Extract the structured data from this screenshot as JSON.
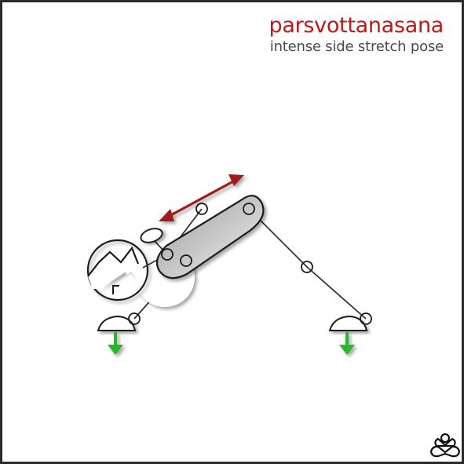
{
  "title": {
    "pose_name": "parsvottanasana",
    "subtitle": "intense side stretch pose"
  },
  "colors": {
    "title": "#c01818",
    "subtitle": "#4a4a4a",
    "stretch_arrow": "#a01c1c",
    "ground_arrow": "#2bb52b",
    "outline": "#1a1a1a",
    "torso_fill_dark": "#9a9a9a",
    "torso_fill_light": "#f2f2f2"
  },
  "icons": {
    "logo": "lotus-icon",
    "stretch": "double-arrow-icon",
    "ground_push": "down-arrow-icon"
  }
}
